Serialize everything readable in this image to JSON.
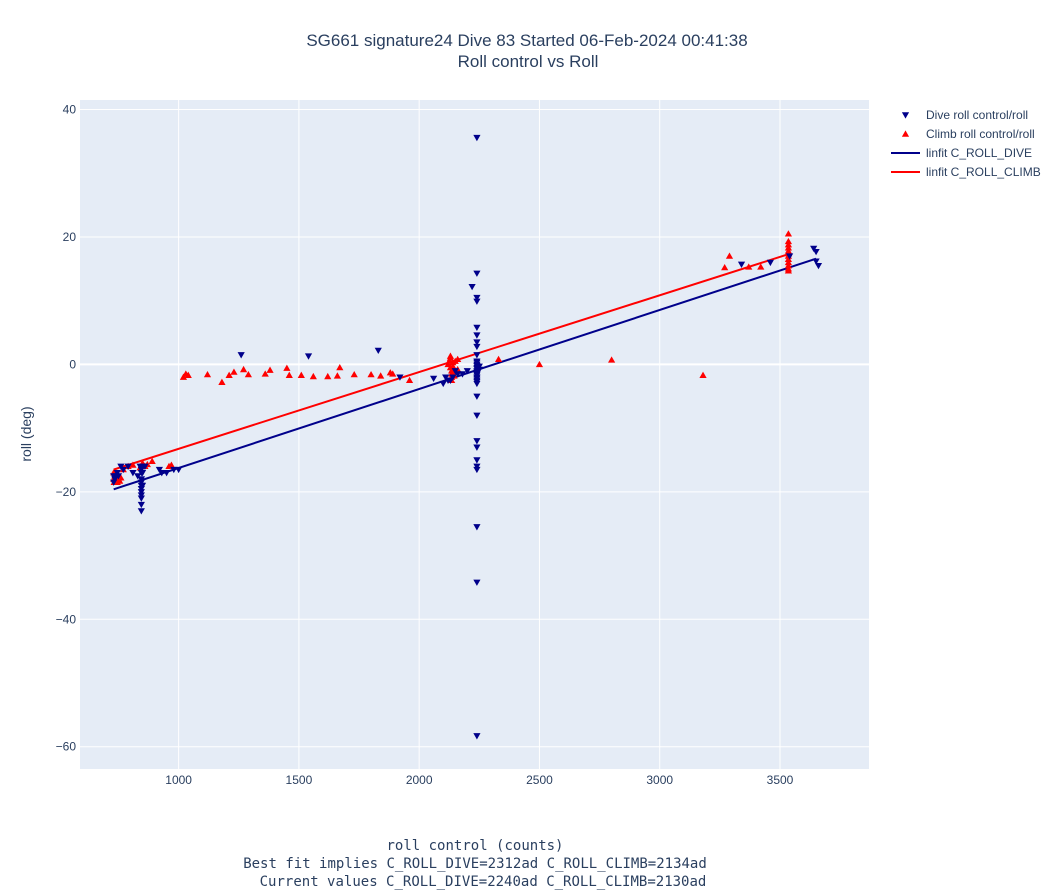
{
  "chart_data": {
    "type": "scatter",
    "title_line1": "SG661 signature24 Dive 83 Started 06-Feb-2024 00:41:38",
    "title_line2": "Roll control vs Roll",
    "xlabel_lines": [
      "roll control (counts)",
      "Best fit implies C_ROLL_DIVE=2312ad C_ROLL_CLIMB=2134ad",
      "Current values C_ROLL_DIVE=2240ad C_ROLL_CLIMB=2130ad"
    ],
    "ylabel": "roll (deg)",
    "xlim": [
      590,
      3870
    ],
    "ylim": [
      -63.5,
      41.5
    ],
    "xticks": [
      1000,
      1500,
      2000,
      2500,
      3000,
      3500
    ],
    "yticks": [
      -60,
      -40,
      -20,
      0,
      20,
      40
    ],
    "ytick_labels": [
      "−60",
      "−40",
      "−20",
      "0",
      "20",
      "40"
    ],
    "grid": true,
    "legend_position": "top-right outside",
    "colors": {
      "dive": "#00008b",
      "climb": "#ff0000",
      "plot_bg": "#e5ecf6",
      "grid": "#ffffff"
    },
    "series": [
      {
        "name": "Dive roll control/roll",
        "kind": "markers",
        "marker": "triangle-down",
        "color": "#00008b",
        "x": [
          730,
          730,
          735,
          740,
          745,
          750,
          760,
          770,
          790,
          810,
          830,
          840,
          845,
          845,
          845,
          845,
          845,
          845,
          845,
          845,
          845,
          845,
          845,
          845,
          850,
          850,
          850,
          860,
          920,
          930,
          950,
          980,
          1000,
          1260,
          1540,
          1830,
          1920,
          2060,
          2100,
          2110,
          2120,
          2130,
          2140,
          2150,
          2160,
          2180,
          2200,
          2220,
          2240,
          2240,
          2240,
          2240,
          2240,
          2240,
          2240,
          2240,
          2240,
          2240,
          2240,
          2240,
          2240,
          2240,
          2240,
          2240,
          2240,
          2240,
          2240,
          2240,
          2240,
          2240,
          2240,
          2240,
          2240,
          2240,
          2240,
          2240,
          2240,
          2240,
          2240,
          2240,
          2240,
          2240,
          2250,
          2250,
          3340,
          3460,
          3540,
          3640,
          3650,
          3650,
          3660
        ],
        "y": [
          -17.5,
          -18.5,
          -18,
          -17.5,
          -17,
          -17.5,
          -16,
          -16.5,
          -16,
          -17,
          -17.5,
          -16,
          -16.5,
          -17,
          -18,
          -18.5,
          -19,
          -19.5,
          -20,
          -20.5,
          -21,
          -22,
          -23,
          -18,
          -16,
          -17,
          -19,
          -16,
          -16.5,
          -17,
          -17,
          -16.5,
          -16.5,
          1.5,
          1.3,
          2.2,
          -2,
          -2.2,
          -3,
          -2,
          -2.5,
          -2.5,
          -2,
          -1,
          -1.5,
          -1.5,
          -1,
          12.2,
          35.6,
          14.3,
          10.5,
          9.9,
          5.8,
          4.6,
          3.5,
          2.8,
          1.5,
          0.5,
          0,
          -0.5,
          -1,
          -1.5,
          -2,
          -2.5,
          -3,
          -5,
          -8,
          -12,
          -13,
          -15,
          -16,
          -16.5,
          -25.5,
          -34.2,
          -58.3,
          -0.2,
          0.3,
          -0.7,
          -1.2,
          -1.7,
          -2.2,
          -2.7,
          -0.8,
          -0.3,
          15.7,
          16,
          17,
          18.2,
          17.7,
          16.2,
          15.5
        ]
      },
      {
        "name": "Climb roll control/roll",
        "kind": "markers",
        "marker": "triangle-up",
        "color": "#ff0000",
        "x": [
          730,
          730,
          732,
          735,
          740,
          745,
          750,
          755,
          760,
          770,
          790,
          810,
          840,
          850,
          860,
          870,
          890,
          960,
          970,
          1020,
          1030,
          1040,
          1120,
          1180,
          1210,
          1230,
          1270,
          1290,
          1360,
          1380,
          1450,
          1460,
          1510,
          1560,
          1620,
          1660,
          1670,
          1730,
          1800,
          1840,
          1880,
          1890,
          1960,
          2120,
          2125,
          2130,
          2130,
          2130,
          2135,
          2135,
          2135,
          2135,
          2140,
          2140,
          2140,
          2145,
          2150,
          2160,
          2160,
          2330,
          2500,
          2800,
          3180,
          3270,
          3290,
          3370,
          3420,
          3535,
          3535,
          3535,
          3535,
          3535,
          3535,
          3535,
          3535,
          3535,
          3535,
          3535,
          3535
        ],
        "y": [
          -17,
          -18,
          -18.5,
          -17.5,
          -17,
          -18.5,
          -18,
          -18.3,
          -17.8,
          -16.5,
          -16,
          -15.8,
          -16.2,
          -15.5,
          -16,
          -15.7,
          -15.2,
          -16,
          -15.8,
          -2,
          -1.5,
          -1.7,
          -1.6,
          -2.8,
          -1.7,
          -1.2,
          -0.8,
          -1.6,
          -1.5,
          -0.9,
          -0.6,
          -1.7,
          -1.7,
          -1.9,
          -1.9,
          -1.8,
          -0.5,
          -1.6,
          -1.6,
          -1.8,
          -1.3,
          -1.5,
          -2.5,
          0,
          0.5,
          1,
          1.3,
          -0.5,
          -1,
          -1.5,
          -2,
          -2.5,
          0.3,
          -0.3,
          -1.2,
          -1.8,
          0.5,
          0.8,
          -0.8,
          0.8,
          0,
          0.7,
          -1.7,
          15.2,
          17,
          15.3,
          15.3,
          20.5,
          19.3,
          18.8,
          18.3,
          17.8,
          17.4,
          17,
          16.5,
          16,
          15.5,
          15,
          14.7
        ]
      },
      {
        "name": "linfit C_ROLL_DIVE",
        "kind": "line",
        "color": "#00008b",
        "x": [
          730,
          3650
        ],
        "y": [
          -19.6,
          16.6
        ]
      },
      {
        "name": "linfit C_ROLL_CLIMB",
        "kind": "line",
        "color": "#ff0000",
        "x": [
          730,
          3535
        ],
        "y": [
          -16.5,
          17.3
        ]
      }
    ]
  }
}
